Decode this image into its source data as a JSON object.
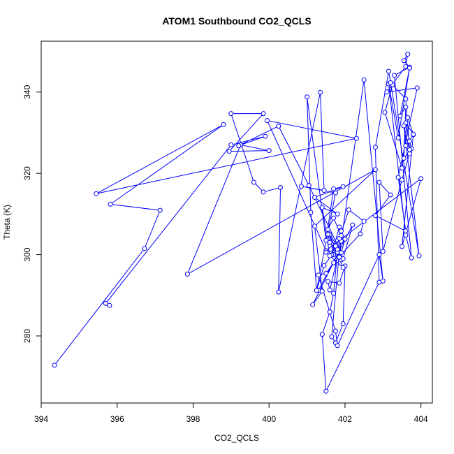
{
  "chart_data": {
    "type": "line",
    "title": "ATOM1 Southbound CO2_QCLS",
    "xlabel": "CO2_QCLS",
    "ylabel": "Theta (K)",
    "xlim": [
      394,
      404.3
    ],
    "ylim": [
      263.5,
      352.5
    ],
    "x_ticks": [
      394,
      396,
      398,
      400,
      402,
      404
    ],
    "y_ticks": [
      280,
      300,
      320,
      340
    ],
    "grid": false,
    "line_color": "#0000ff",
    "marker": "open-circle",
    "series": [
      {
        "x": [
          394.35,
          396.72,
          397.13,
          395.82,
          398.8,
          395.45,
          402.3,
          399.95,
          401.5,
          404.0,
          403.5,
          403.8,
          403.6,
          403.7,
          403.5,
          403.0,
          402.9,
          403.2,
          402.8,
          403.6,
          403.4,
          403.9,
          403.1,
          403.6,
          403.65,
          403.55,
          403.7,
          403.3,
          403.75,
          403.6,
          403.15,
          403.4,
          403.7,
          403.45,
          403.6,
          403.55,
          403.75,
          403.7,
          403.6,
          403.8,
          403.65,
          403.5,
          403.05,
          403.25,
          403.6,
          403.7,
          403.55,
          403.95,
          403.2,
          403.15,
          402.8,
          402.9,
          401.5,
          401.4,
          401.6,
          401.7,
          401.8,
          401.9,
          401.65,
          401.75,
          401.95,
          402.0,
          401.85,
          401.55,
          401.6,
          401.9,
          402.5,
          403.0,
          402.9,
          401.8,
          401.75,
          401.3,
          401.5,
          401.7,
          402.4,
          402.5,
          402.1,
          401.85,
          401.7,
          401.6,
          401.95,
          401.5,
          401.8,
          401.55,
          401.6,
          401.9,
          401.85,
          401.65,
          401.45,
          401.25,
          401.1,
          401.0,
          401.5,
          401.7,
          401.95,
          401.2,
          401.8,
          401.4,
          401.6,
          401.75,
          401.85,
          401.9,
          401.7,
          401.55,
          401.95,
          402.2,
          401.3,
          401.25,
          401.75,
          400.85,
          401.45,
          401.35,
          400.25,
          400.3,
          399.85,
          399.6,
          399.0,
          399.85,
          398.95,
          400.0,
          399.25,
          397.85,
          402.8,
          401.2,
          401.4,
          401.15,
          402.0,
          401.9,
          401.05,
          400.25,
          399.2,
          399.9,
          399.0,
          395.7,
          395.8
        ],
        "y": [
          272.8,
          301.5,
          310.9,
          312.4,
          332.0,
          315.0,
          328.6,
          333.0,
          301.0,
          318.7,
          302.0,
          329.5,
          326.8,
          324.8,
          318.4,
          300.8,
          317.8,
          314.7,
          309.6,
          305.8,
          319.0,
          341.0,
          340.0,
          346.3,
          349.3,
          347.7,
          346.1,
          344.1,
          299.2,
          304.8,
          342.0,
          328.7,
          345.9,
          334.1,
          336.3,
          323.7,
          326.1,
          327.9,
          332.4,
          329.6,
          333.7,
          321.3,
          335.0,
          341.8,
          338.3,
          325.8,
          331.7,
          299.7,
          342.3,
          345.1,
          326.4,
          293.2,
          266.4,
          280.4,
          285.9,
          290.5,
          300.6,
          305.8,
          279.8,
          278.3,
          283.0,
          297.2,
          293.0,
          293.4,
          291.3,
          303.3,
          343.0,
          293.5,
          300.0,
          277.6,
          281.2,
          295.0,
          295.4,
          298.0,
          305.1,
          308.2,
          311.0,
          304.0,
          300.0,
          304.9,
          296.8,
          300.6,
          301.3,
          305.0,
          303.0,
          298.7,
          306.8,
          299.9,
          297.3,
          291.2,
          310.4,
          338.8,
          303.5,
          316.2,
          316.7,
          314.1,
          310.0,
          311.6,
          299.7,
          302.1,
          299.4,
          304.7,
          309.0,
          306.2,
          299.0,
          307.3,
          291.2,
          291.2,
          315.2,
          316.8,
          315.8,
          339.9,
          290.8,
          316.5,
          315.4,
          317.8,
          334.7,
          334.7,
          325.4,
          325.6,
          327.0,
          295.2,
          320.9,
          307.0,
          291.0,
          287.7,
          303.8,
          300.5,
          317.0,
          331.6,
          326.8,
          329.1,
          327.0,
          288.0,
          287.5
        ]
      }
    ]
  }
}
